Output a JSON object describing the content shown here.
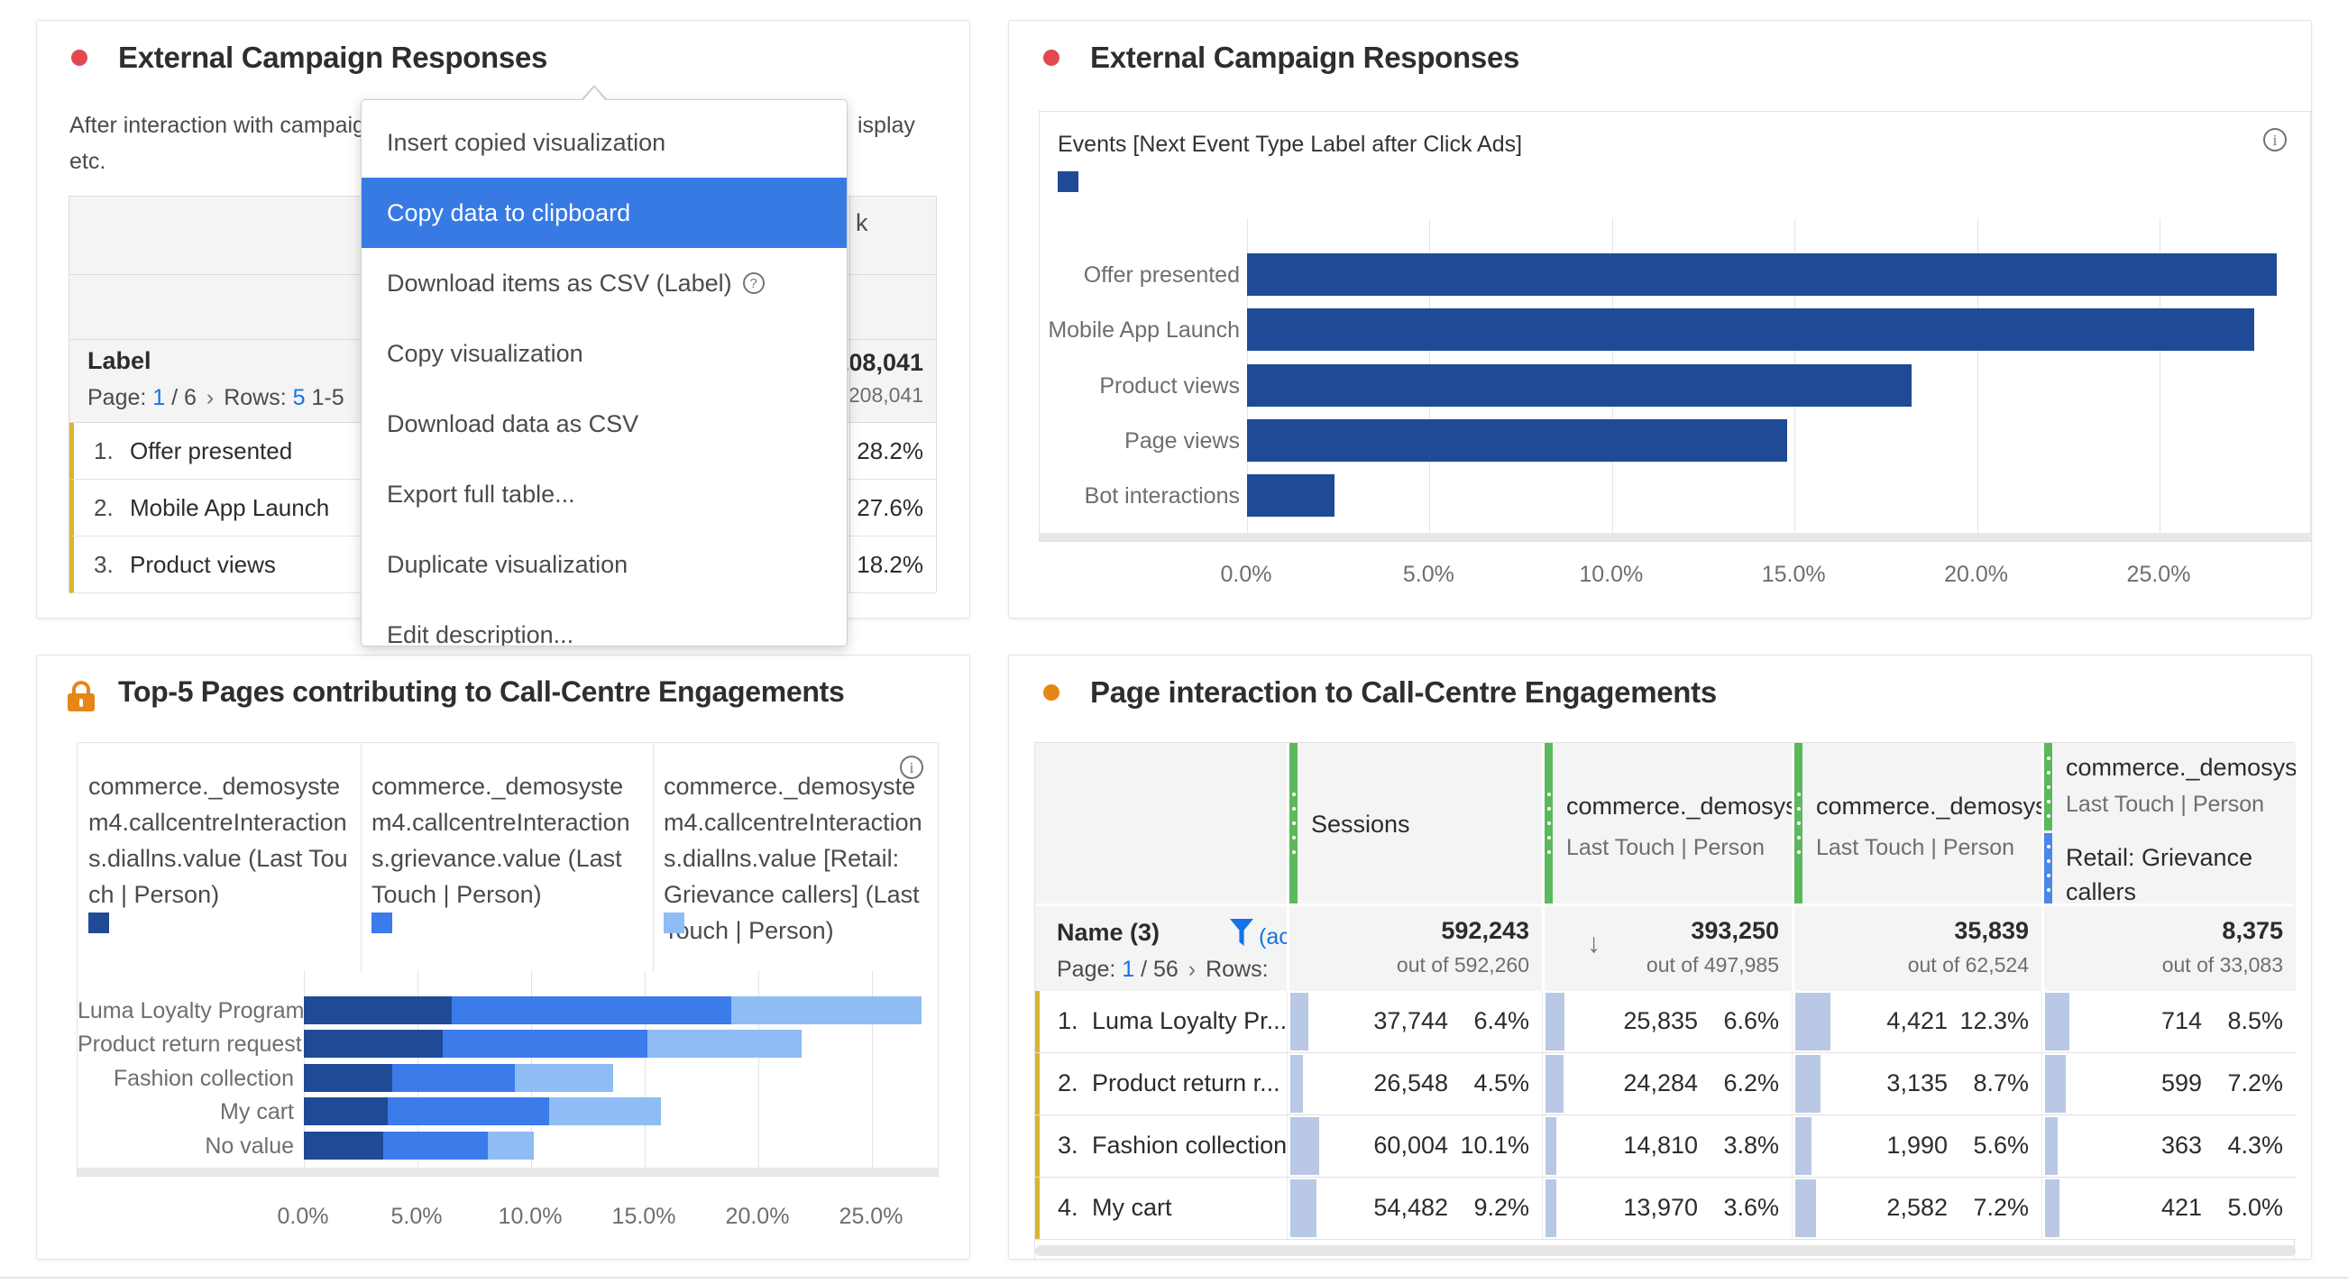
{
  "colors": {
    "red_dot": "#e34850",
    "orange": "#e68619",
    "navy": "#1f4a96",
    "mid_blue": "#3b7bea",
    "light_blue": "#8fbcf4",
    "menu_highlight": "#377ae3",
    "green_handle": "#5cb85c",
    "blue_handle": "#4d86ea",
    "gold_row_edge": "#d9b52e",
    "link_blue": "#1473e6",
    "cell_bar_blue": "#b9c8e5"
  },
  "campaign_table_panel": {
    "title": "External Campaign Responses",
    "description_left": "After interaction with campaig",
    "description_right": "isplay",
    "description_line2": "etc.",
    "column_header_fragment": "k",
    "label_header": "Label",
    "pagination": {
      "page_label": "Page:",
      "page": "1",
      "page_total": "/ 6",
      "chevron": "›",
      "rows_label": "Rows:",
      "rows_value": "5",
      "range": "1-5"
    },
    "total_value": "208,041",
    "total_sub": "out of 208,041",
    "rows": [
      {
        "n": "1.",
        "label": "Offer presented",
        "pct": "28.2%"
      },
      {
        "n": "2.",
        "label": "Mobile App Launch",
        "pct": "27.6%"
      },
      {
        "n": "3.",
        "label": "Product views",
        "pct": "18.2%"
      }
    ]
  },
  "context_menu": {
    "items": [
      {
        "label": "Insert copied visualization",
        "highlighted": false,
        "help_icon": false
      },
      {
        "label": "Copy data to clipboard",
        "highlighted": true,
        "help_icon": false
      },
      {
        "label": "Download items as CSV (Label)",
        "highlighted": false,
        "help_icon": true
      },
      {
        "label": "Copy visualization",
        "highlighted": false,
        "help_icon": false
      },
      {
        "label": "Download data as CSV",
        "highlighted": false,
        "help_icon": false
      },
      {
        "label": "Export full table...",
        "highlighted": false,
        "help_icon": false
      },
      {
        "label": "Duplicate visualization",
        "highlighted": false,
        "help_icon": false
      },
      {
        "label": "Edit description...",
        "highlighted": false,
        "help_icon": false
      }
    ]
  },
  "campaign_chart_panel": {
    "title": "External Campaign Responses",
    "legend": "Events [Next Event Type Label after Click Ads]"
  },
  "top5_pages_panel": {
    "title": "Top-5 Pages contributing to Call-Centre Engagements"
  },
  "page_interaction_panel": {
    "title": "Page interaction to Call-Centre Engagements",
    "name_header": "Name (3)",
    "filter_fragment": "(ac",
    "pagination": {
      "page_label": "Page:",
      "page": "1",
      "page_total": "/ 56",
      "chevron": "›",
      "rows_label": "Rows:"
    },
    "columns": [
      {
        "label": "Sessions",
        "sub": "",
        "segment2": ""
      },
      {
        "label": "commerce._demosyste",
        "sub": "Last Touch | Person",
        "segment2": ""
      },
      {
        "label": "commerce._demosyste",
        "sub": "Last Touch | Person",
        "segment2": ""
      },
      {
        "label": "commerce._demosyste",
        "sub": "Last Touch | Person",
        "segment2": "Retail: Grievance callers"
      }
    ],
    "totals": [
      {
        "value": "592,243",
        "out_of": "out of 592,260"
      },
      {
        "value": "393,250",
        "out_of": "out of 497,985"
      },
      {
        "value": "35,839",
        "out_of": "out of 62,524"
      },
      {
        "value": "8,375",
        "out_of": "out of 33,083"
      }
    ],
    "rows": [
      {
        "n": "1.",
        "name": "Luma Loyalty Pr...",
        "cells": [
          {
            "value": "37,744",
            "pct": "6.4%"
          },
          {
            "value": "25,835",
            "pct": "6.6%"
          },
          {
            "value": "4,421",
            "pct": "12.3%"
          },
          {
            "value": "714",
            "pct": "8.5%"
          }
        ]
      },
      {
        "n": "2.",
        "name": "Product return r...",
        "cells": [
          {
            "value": "26,548",
            "pct": "4.5%"
          },
          {
            "value": "24,284",
            "pct": "6.2%"
          },
          {
            "value": "3,135",
            "pct": "8.7%"
          },
          {
            "value": "599",
            "pct": "7.2%"
          }
        ]
      },
      {
        "n": "3.",
        "name": "Fashion collection",
        "cells": [
          {
            "value": "60,004",
            "pct": "10.1%"
          },
          {
            "value": "14,810",
            "pct": "3.8%"
          },
          {
            "value": "1,990",
            "pct": "5.6%"
          },
          {
            "value": "363",
            "pct": "4.3%"
          }
        ]
      },
      {
        "n": "4.",
        "name": "My cart",
        "cells": [
          {
            "value": "54,482",
            "pct": "9.2%"
          },
          {
            "value": "13,970",
            "pct": "3.6%"
          },
          {
            "value": "2,582",
            "pct": "7.2%"
          },
          {
            "value": "421",
            "pct": "5.0%"
          }
        ]
      }
    ]
  },
  "chart_data": [
    {
      "type": "bar",
      "orientation": "horizontal",
      "title": "External Campaign Responses",
      "legend_entries": [
        "Events [Next Event Type Label after Click Ads]"
      ],
      "categories": [
        "Offer presented",
        "Mobile App Launch",
        "Product views",
        "Page views",
        "Bot interactions"
      ],
      "values": [
        28.2,
        27.6,
        18.2,
        14.8,
        2.4
      ],
      "xlabel": "",
      "ylabel": "",
      "xlim": [
        0,
        28.5
      ],
      "tick_values": [
        0,
        5,
        10,
        15,
        20,
        25
      ],
      "tick_labels": [
        "0.0%",
        "5.0%",
        "10.0%",
        "15.0%",
        "20.0%",
        "25.0%"
      ],
      "grid": true,
      "bar_color": "#1f4a96"
    },
    {
      "type": "bar",
      "orientation": "horizontal",
      "stacked": true,
      "title": "Top-5 Pages contributing to Call-Centre Engagements",
      "categories": [
        "Luma Loyalty Program",
        "Product return request",
        "Fashion collection",
        "My cart",
        "No value"
      ],
      "series": [
        {
          "name": "commerce._demosystem4.callcentreInteractions.diallns.value (Last Touch | Person)",
          "color": "#1f4a96",
          "values": [
            6.5,
            6.1,
            3.9,
            3.7,
            3.5
          ]
        },
        {
          "name": "commerce._demosystem4.callcentreInteractions.grievance.value (Last Touch | Person)",
          "color": "#3b7bea",
          "values": [
            12.3,
            9.0,
            5.4,
            7.1,
            4.6
          ]
        },
        {
          "name": "commerce._demosystem4.callcentreInteractions.diallns.value [Retail: Grievance callers] (Last Touch | Person)",
          "color": "#8fbcf4",
          "values": [
            8.4,
            6.8,
            4.3,
            4.9,
            2.0
          ]
        }
      ],
      "xlim": [
        0,
        28
      ],
      "tick_values": [
        0,
        5,
        10,
        15,
        20,
        25
      ],
      "tick_labels": [
        "0.0%",
        "5.0%",
        "10.0%",
        "15.0%",
        "20.0%",
        "25.0%"
      ],
      "grid": true,
      "legend_position": "top"
    },
    {
      "type": "table",
      "title": "Page interaction to Call-Centre Engagements",
      "columns": [
        "Sessions",
        "commerce._demosyste (Last Touch | Person)",
        "commerce._demosyste (Last Touch | Person)",
        "commerce._demosyste (Last Touch | Person) / Retail: Grievance callers"
      ],
      "totals": [
        592243,
        393250,
        35839,
        8375
      ],
      "totals_out_of": [
        592260,
        497985,
        62524,
        33083
      ],
      "rows": [
        {
          "name": "Luma Loyalty Pr...",
          "values": [
            37744,
            25835,
            4421,
            714
          ],
          "pcts": [
            6.4,
            6.6,
            12.3,
            8.5
          ]
        },
        {
          "name": "Product return r...",
          "values": [
            26548,
            24284,
            3135,
            599
          ],
          "pcts": [
            4.5,
            6.2,
            8.7,
            7.2
          ]
        },
        {
          "name": "Fashion collection",
          "values": [
            60004,
            14810,
            1990,
            363
          ],
          "pcts": [
            10.1,
            3.8,
            5.6,
            4.3
          ]
        },
        {
          "name": "My cart",
          "values": [
            54482,
            13970,
            2582,
            421
          ],
          "pcts": [
            9.2,
            3.6,
            7.2,
            5.0
          ]
        }
      ]
    }
  ]
}
